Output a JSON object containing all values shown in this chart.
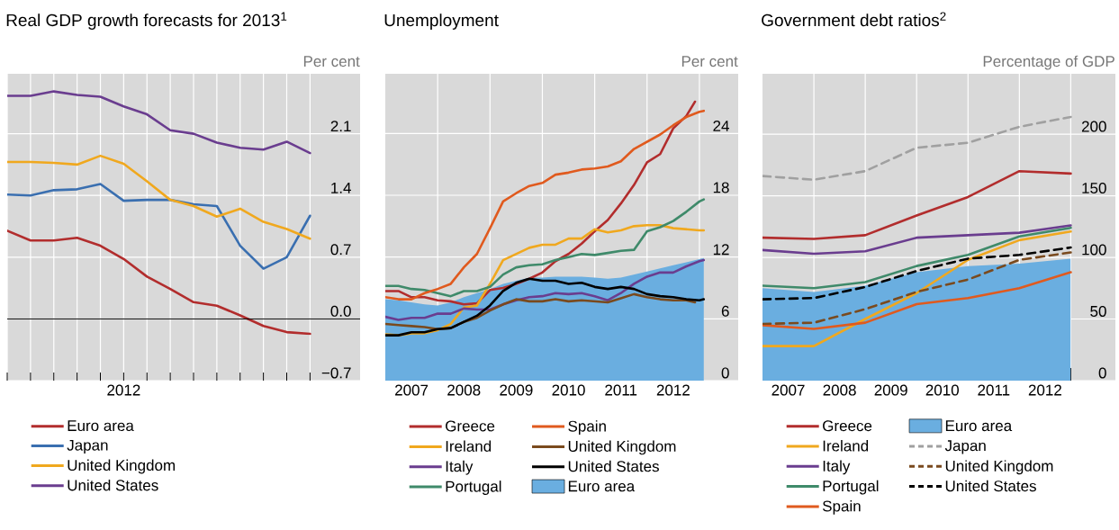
{
  "chart_data": [
    {
      "type": "line",
      "title": "Real GDP growth forecasts for 2013$^{1}$",
      "ylabel": "Per cent",
      "categories": [
        null,
        null,
        null,
        null,
        null,
        "2012",
        null,
        null,
        null,
        null,
        null,
        null,
        null,
        null
      ],
      "series": [
        {
          "name": "Euro area",
          "color": "#b22d2d",
          "values": [
            1.0,
            0.89,
            0.89,
            0.92,
            0.83,
            0.68,
            0.48,
            0.34,
            0.19,
            0.15,
            0.04,
            -0.08,
            -0.15,
            -0.17
          ]
        },
        {
          "name": "Japan",
          "color": "#3a6fb0",
          "values": [
            1.41,
            1.4,
            1.46,
            1.47,
            1.53,
            1.34,
            1.35,
            1.35,
            1.3,
            1.28,
            0.83,
            0.57,
            0.7,
            1.17
          ]
        },
        {
          "name": "United Kingdom",
          "color": "#f0a81e",
          "values": [
            1.78,
            1.78,
            1.77,
            1.75,
            1.85,
            1.76,
            1.56,
            1.35,
            1.28,
            1.16,
            1.25,
            1.1,
            1.02,
            0.91
          ]
        },
        {
          "name": "United States",
          "color": "#6a3d8f",
          "values": [
            2.53,
            2.53,
            2.58,
            2.54,
            2.52,
            2.41,
            2.32,
            2.14,
            2.1,
            2.0,
            1.94,
            1.92,
            2.01,
            1.88
          ]
        }
      ],
      "ylim": [
        -0.7,
        2.78
      ],
      "yticks": [
        {
          "value": -0.7,
          "label": "−0.7"
        },
        {
          "value": 0,
          "label": "0.0"
        },
        {
          "value": 0.7,
          "label": "0.7"
        },
        {
          "value": 1.4,
          "label": "1.4"
        },
        {
          "value": 2.1,
          "label": "2.1"
        }
      ],
      "ref_lines": [
        {
          "axis": "y",
          "value": 0,
          "color": "#000000"
        }
      ],
      "grid": true,
      "legend": "bottom"
    },
    {
      "type": "line",
      "title": "Unemployment",
      "ylabel": "Per cent",
      "x": [
        "2007-01",
        "2007-04",
        "2007-07",
        "2007-10",
        "2008-01",
        "2008-04",
        "2008-07",
        "2008-10",
        "2009-01",
        "2009-04",
        "2009-07",
        "2009-10",
        "2010-01",
        "2010-04",
        "2010-07",
        "2010-10",
        "2011-01",
        "2011-04",
        "2011-07",
        "2011-10",
        "2012-01",
        "2012-04",
        "2012-07",
        "2012-10",
        "2013-01",
        "2013-02"
      ],
      "series": [
        {
          "name": "Greece",
          "color": "#b22d2d",
          "x": [
            "2007-01",
            "2007-04",
            "2007-07",
            "2007-10",
            "2008-01",
            "2008-04",
            "2008-07",
            "2008-10",
            "2009-01",
            "2009-04",
            "2009-07",
            "2009-10",
            "2010-01",
            "2010-04",
            "2010-07",
            "2010-10",
            "2011-01",
            "2011-04",
            "2011-07",
            "2011-10",
            "2012-01",
            "2012-04",
            "2012-07",
            "2012-10",
            "2012-12"
          ],
          "values": [
            8.7,
            8.7,
            8.1,
            8.1,
            7.8,
            7.7,
            7.4,
            7.5,
            8.8,
            9.0,
            9.4,
            9.9,
            10.5,
            11.6,
            12.3,
            13.3,
            14.5,
            15.6,
            17.2,
            19.0,
            21.2,
            22.0,
            24.5,
            25.7,
            27.1
          ]
        },
        {
          "name": "Ireland",
          "color": "#f0a81e",
          "values": [
            4.5,
            4.4,
            4.6,
            4.6,
            4.9,
            5.5,
            7.1,
            7.3,
            9.4,
            11.7,
            12.3,
            12.9,
            13.2,
            13.2,
            13.8,
            13.8,
            14.7,
            14.4,
            14.6,
            15.0,
            15.1,
            15.1,
            14.8,
            14.7,
            14.6,
            14.6
          ]
        },
        {
          "name": "Italy",
          "color": "#6a3d8f",
          "values": [
            6.2,
            5.9,
            6.1,
            6.1,
            6.5,
            6.5,
            7.0,
            6.9,
            6.9,
            7.4,
            7.8,
            8.1,
            8.2,
            8.5,
            8.4,
            8.5,
            8.2,
            7.8,
            8.5,
            9.4,
            10.1,
            10.5,
            10.5,
            11.1,
            11.6,
            11.7
          ]
        },
        {
          "name": "Portugal",
          "color": "#3f8a6a",
          "values": [
            9.2,
            9.2,
            8.9,
            8.8,
            8.5,
            8.2,
            8.7,
            8.7,
            9.1,
            10.3,
            11.0,
            11.2,
            11.3,
            11.7,
            12.0,
            12.3,
            12.2,
            12.4,
            12.6,
            12.7,
            14.5,
            14.9,
            15.5,
            16.4,
            17.4,
            17.6
          ]
        },
        {
          "name": "Spain",
          "color": "#e05a1e",
          "values": [
            8.1,
            7.9,
            7.9,
            8.5,
            8.9,
            9.4,
            11.0,
            12.3,
            14.8,
            17.4,
            18.2,
            18.9,
            19.2,
            20.0,
            20.2,
            20.5,
            20.6,
            20.8,
            21.3,
            22.5,
            23.2,
            23.9,
            24.8,
            25.6,
            26.1,
            26.2
          ]
        },
        {
          "name": "United Kingdom",
          "color": "#7a4a1e",
          "x": [
            "2007-01",
            "2007-04",
            "2007-07",
            "2007-10",
            "2008-01",
            "2008-04",
            "2008-07",
            "2008-10",
            "2009-01",
            "2009-04",
            "2009-07",
            "2009-10",
            "2010-01",
            "2010-04",
            "2010-07",
            "2010-10",
            "2011-01",
            "2011-04",
            "2011-07",
            "2011-10",
            "2012-01",
            "2012-04",
            "2012-07",
            "2012-10",
            "2012-12"
          ],
          "values": [
            5.5,
            5.4,
            5.3,
            5.2,
            5.0,
            5.1,
            5.7,
            6.1,
            6.8,
            7.4,
            7.9,
            7.7,
            7.7,
            7.9,
            7.7,
            7.8,
            7.7,
            7.6,
            8.0,
            8.4,
            8.1,
            7.9,
            7.8,
            7.8,
            7.6
          ]
        },
        {
          "name": "United States",
          "color": "#000000",
          "values": [
            4.4,
            4.4,
            4.7,
            4.7,
            5.0,
            5.1,
            5.7,
            6.3,
            7.3,
            8.7,
            9.5,
            9.9,
            9.7,
            9.7,
            9.4,
            9.5,
            9.1,
            8.9,
            9.1,
            8.9,
            8.4,
            8.2,
            8.1,
            7.9,
            7.8,
            7.9
          ]
        },
        {
          "name": "Euro area",
          "color": "#6aaee0",
          "type": "area",
          "values": [
            7.9,
            7.8,
            7.6,
            7.4,
            7.3,
            7.6,
            8.1,
            8.5,
            8.9,
            9.4,
            9.7,
            10.0,
            10.0,
            10.1,
            10.1,
            10.1,
            10.0,
            9.9,
            10.0,
            10.3,
            10.6,
            10.9,
            11.2,
            11.5,
            11.8,
            11.9
          ]
        }
      ],
      "xlim": [
        "2007-01",
        "2013-09-28"
      ],
      "xticks": [
        {
          "value": "2008-01",
          "label": null
        },
        {
          "value": "2009-01",
          "label": null
        },
        {
          "value": "2010-01",
          "label": null
        },
        {
          "value": "2011-01",
          "label": null
        },
        {
          "value": "2012-01",
          "label": null
        },
        {
          "value": "2013-01",
          "label": null
        },
        {
          "value": "2007-07",
          "label": "2007"
        },
        {
          "value": "2008-07",
          "label": "2008"
        },
        {
          "value": "2009-07",
          "label": "2009"
        },
        {
          "value": "2010-07",
          "label": "2010"
        },
        {
          "value": "2011-07",
          "label": "2011"
        },
        {
          "value": "2012-07",
          "label": "2012"
        }
      ],
      "ylim": [
        0,
        29.8
      ],
      "yticks": [
        0,
        6,
        12,
        18,
        24
      ],
      "grid": true,
      "legend": "bottom"
    },
    {
      "type": "line",
      "title": "Government debt ratios$^{2}$",
      "ylabel": "Percentage of GDP",
      "x": [
        "2007-01",
        "2008-01",
        "2009-01",
        "2010-01",
        "2011-01",
        "2012-01",
        "2013-01"
      ],
      "series": [
        {
          "name": "Greece",
          "color": "#b22d2d",
          "values": [
            116,
            115,
            118,
            134,
            149,
            170,
            168
          ]
        },
        {
          "name": "Ireland",
          "color": "#f0a81e",
          "values": [
            28,
            28,
            50,
            71,
            98,
            114,
            121
          ]
        },
        {
          "name": "Italy",
          "color": "#6a3d8f",
          "values": [
            106,
            103,
            105,
            116,
            118,
            120,
            126
          ]
        },
        {
          "name": "Portugal",
          "color": "#3f8a6a",
          "values": [
            77,
            75,
            80,
            93,
            102,
            117,
            124
          ]
        },
        {
          "name": "Spain",
          "color": "#e05a1e",
          "values": [
            45,
            42,
            47,
            62,
            67,
            75,
            88
          ]
        },
        {
          "name": "Euro area",
          "color": "#6aaee0",
          "type": "area",
          "values": [
            75,
            72,
            77,
            88,
            93,
            95,
            99
          ]
        },
        {
          "name": "Japan",
          "color": "#a0a0a0",
          "line_style": "dashed",
          "values": [
            166,
            163,
            170,
            189,
            193,
            206,
            214
          ]
        },
        {
          "name": "United Kingdom",
          "color": "#7a4a1e",
          "line_style": "dashed",
          "values": [
            46,
            47,
            58,
            72,
            82,
            98,
            104
          ]
        },
        {
          "name": "United States",
          "color": "#000000",
          "line_style": "dashed",
          "values": [
            66,
            67,
            76,
            89,
            99,
            102,
            108
          ]
        }
      ],
      "xlim": [
        "2007-01",
        "2013-11-14"
      ],
      "xticks": [
        {
          "value": "2008-01",
          "label": null
        },
        {
          "value": "2009-01",
          "label": null
        },
        {
          "value": "2010-01",
          "label": null
        },
        {
          "value": "2011-01",
          "label": null
        },
        {
          "value": "2012-01",
          "label": null
        },
        {
          "value": "2013-01",
          "label": null
        },
        {
          "value": "2007-07",
          "label": "2007"
        },
        {
          "value": "2008-07",
          "label": "2008"
        },
        {
          "value": "2009-07",
          "label": "2009"
        },
        {
          "value": "2010-07",
          "label": "2010"
        },
        {
          "value": "2011-07",
          "label": "2011"
        },
        {
          "value": "2012-07",
          "label": "2012"
        }
      ],
      "ylim": [
        0,
        249
      ],
      "yticks": [
        0,
        50,
        100,
        150,
        200
      ],
      "grid": true,
      "legend": "bottom"
    }
  ]
}
